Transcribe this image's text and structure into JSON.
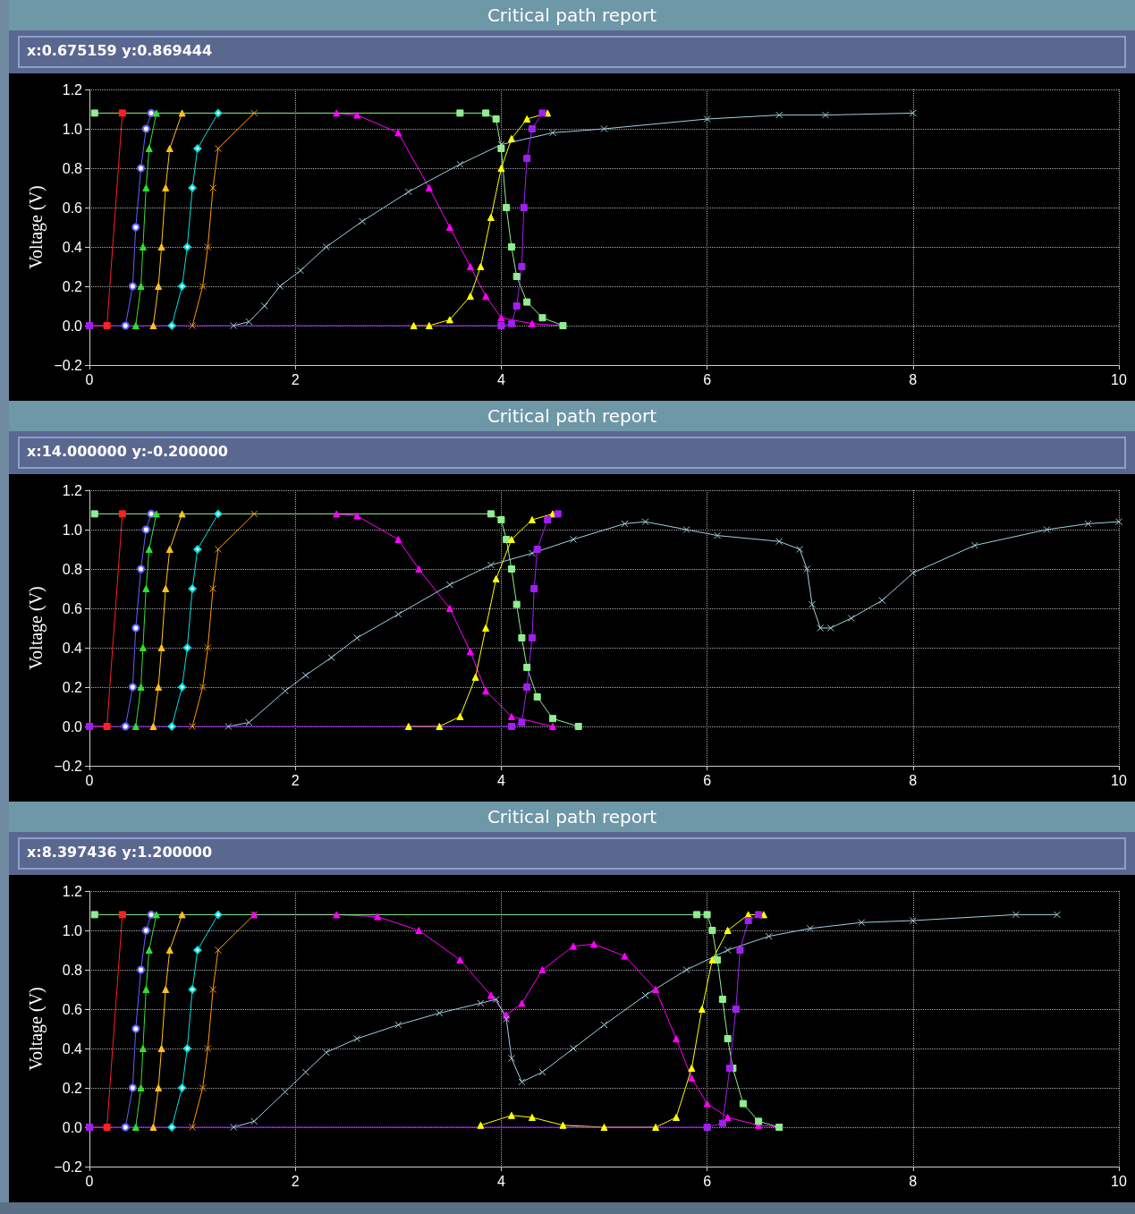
{
  "chart_data": [
    {
      "type": "line",
      "title": "Critical path report",
      "subtitle": "x:0.675159 y:0.869444",
      "ylabel": "Voltage (V)",
      "xlim": [
        0,
        10
      ],
      "xticks": [
        0,
        2,
        4,
        6,
        8,
        10
      ],
      "ylim": [
        -0.2,
        1.2
      ],
      "yticks": [
        {
          "value": -0.2,
          "label": "−0.2"
        },
        {
          "value": 0,
          "label": "0.0"
        },
        0.2,
        0.4,
        0.6,
        0.8,
        {
          "value": 1,
          "label": "1.0"
        },
        1.2
      ],
      "grid": true,
      "line_style": "solid",
      "series": [
        {
          "color": "#ff2020",
          "marker": "square",
          "x": [
            0,
            0.17,
            0.32
          ],
          "values": [
            0,
            0,
            1.08
          ]
        },
        {
          "color": "#6060ff",
          "marker": "circle",
          "x": [
            0.35,
            0.42,
            0.45,
            0.5,
            0.55,
            0.6
          ],
          "values": [
            0,
            0.2,
            0.5,
            0.8,
            1.0,
            1.08
          ]
        },
        {
          "color": "#30e030",
          "marker": "triangle",
          "x": [
            0.45,
            0.5,
            0.52,
            0.55,
            0.58,
            0.65
          ],
          "values": [
            0,
            0.2,
            0.4,
            0.7,
            0.9,
            1.08
          ]
        },
        {
          "color": "#ffc020",
          "marker": "triangle",
          "x": [
            0.62,
            0.67,
            0.7,
            0.74,
            0.78,
            0.9
          ],
          "values": [
            0,
            0.2,
            0.4,
            0.7,
            0.9,
            1.08
          ]
        },
        {
          "color": "#00e0e0",
          "marker": "diamond",
          "x": [
            0.8,
            0.9,
            0.95,
            1.0,
            1.05,
            1.25
          ],
          "values": [
            0,
            0.2,
            0.4,
            0.7,
            0.9,
            1.08
          ]
        },
        {
          "color": "#ff9900",
          "marker": "cross",
          "x": [
            1.0,
            1.1,
            1.15,
            1.2,
            1.25,
            1.6
          ],
          "values": [
            0,
            0.2,
            0.4,
            0.7,
            0.9,
            1.08
          ]
        },
        {
          "color": "#ff00ff",
          "marker": "triangle",
          "x": [
            2.4,
            2.6,
            3.0,
            3.3,
            3.5,
            3.7,
            3.85,
            4.0,
            4.3,
            4.6
          ],
          "values": [
            1.08,
            1.07,
            0.98,
            0.7,
            0.5,
            0.3,
            0.15,
            0.04,
            0.01,
            0
          ]
        },
        {
          "color": "#a0d0e0",
          "marker": "cross",
          "x": [
            1.4,
            1.55,
            1.7,
            1.85,
            2.05,
            2.3,
            2.65,
            3.1,
            3.6,
            4.0,
            4.5,
            5.0,
            6.0,
            6.7,
            7.15,
            8.0
          ],
          "values": [
            0,
            0.02,
            0.1,
            0.2,
            0.28,
            0.4,
            0.53,
            0.68,
            0.82,
            0.92,
            0.98,
            1.0,
            1.05,
            1.07,
            1.07,
            1.08
          ]
        },
        {
          "color": "#90ee90",
          "marker": "square",
          "x": [
            0.05,
            3.6,
            3.85,
            3.95,
            4.0,
            4.05,
            4.1,
            4.15,
            4.25,
            4.4,
            4.6
          ],
          "values": [
            1.08,
            1.08,
            1.08,
            1.05,
            0.9,
            0.6,
            0.4,
            0.25,
            0.12,
            0.04,
            0
          ]
        },
        {
          "color": "#ffff00",
          "marker": "triangle",
          "x": [
            3.15,
            3.3,
            3.5,
            3.7,
            3.8,
            3.9,
            4.0,
            4.1,
            4.25,
            4.45
          ],
          "values": [
            0,
            0,
            0.03,
            0.15,
            0.3,
            0.55,
            0.8,
            0.95,
            1.05,
            1.08
          ]
        },
        {
          "color": "#a020f0",
          "marker": "square",
          "x": [
            0,
            4.0,
            4.1,
            4.15,
            4.2,
            4.22,
            4.25,
            4.3,
            4.4
          ],
          "values": [
            0,
            0,
            0.01,
            0.1,
            0.3,
            0.6,
            0.85,
            1.0,
            1.08
          ]
        }
      ]
    },
    {
      "type": "line",
      "title": "Critical path report",
      "subtitle": "x:14.000000 y:-0.200000",
      "ylabel": "Voltage (V)",
      "xlim": [
        0,
        10
      ],
      "xticks": [
        0,
        2,
        4,
        6,
        8,
        10
      ],
      "ylim": [
        -0.2,
        1.2
      ],
      "yticks": [
        {
          "value": -0.2,
          "label": "−0.2"
        },
        {
          "value": 0,
          "label": "0.0"
        },
        0.2,
        0.4,
        0.6,
        0.8,
        {
          "value": 1,
          "label": "1.0"
        },
        1.2
      ],
      "grid": true,
      "line_style": "solid",
      "series": [
        {
          "color": "#ff2020",
          "marker": "square",
          "x": [
            0,
            0.17,
            0.32
          ],
          "values": [
            0,
            0,
            1.08
          ]
        },
        {
          "color": "#6060ff",
          "marker": "circle",
          "x": [
            0.35,
            0.42,
            0.45,
            0.5,
            0.55,
            0.6
          ],
          "values": [
            0,
            0.2,
            0.5,
            0.8,
            1.0,
            1.08
          ]
        },
        {
          "color": "#30e030",
          "marker": "triangle",
          "x": [
            0.45,
            0.5,
            0.52,
            0.55,
            0.58,
            0.65
          ],
          "values": [
            0,
            0.2,
            0.4,
            0.7,
            0.9,
            1.08
          ]
        },
        {
          "color": "#ffc020",
          "marker": "triangle",
          "x": [
            0.62,
            0.67,
            0.7,
            0.74,
            0.78,
            0.9
          ],
          "values": [
            0,
            0.2,
            0.4,
            0.7,
            0.9,
            1.08
          ]
        },
        {
          "color": "#00e0e0",
          "marker": "diamond",
          "x": [
            0.8,
            0.9,
            0.95,
            1.0,
            1.05,
            1.25
          ],
          "values": [
            0,
            0.2,
            0.4,
            0.7,
            0.9,
            1.08
          ]
        },
        {
          "color": "#ff9900",
          "marker": "cross",
          "x": [
            1.0,
            1.1,
            1.15,
            1.2,
            1.25,
            1.6
          ],
          "values": [
            0,
            0.2,
            0.4,
            0.7,
            0.9,
            1.08
          ]
        },
        {
          "color": "#ff00ff",
          "marker": "triangle",
          "x": [
            2.4,
            2.6,
            3.0,
            3.2,
            3.5,
            3.7,
            3.85,
            4.1,
            4.5
          ],
          "values": [
            1.08,
            1.07,
            0.95,
            0.8,
            0.6,
            0.38,
            0.18,
            0.05,
            0
          ]
        },
        {
          "color": "#a0d0e0",
          "marker": "cross",
          "x": [
            1.35,
            1.55,
            1.9,
            2.1,
            2.35,
            2.6,
            3.0,
            3.5,
            3.9,
            4.3,
            4.7,
            5.2,
            5.4,
            5.8,
            6.1,
            6.7,
            6.9,
            6.97,
            7.02,
            7.1,
            7.2,
            7.4,
            7.7,
            8.0,
            8.6,
            9.3,
            9.7,
            10.0
          ],
          "values": [
            0,
            0.02,
            0.18,
            0.26,
            0.35,
            0.45,
            0.57,
            0.72,
            0.82,
            0.88,
            0.95,
            1.03,
            1.04,
            1.0,
            0.97,
            0.94,
            0.9,
            0.8,
            0.62,
            0.5,
            0.5,
            0.55,
            0.64,
            0.78,
            0.92,
            1.0,
            1.03,
            1.04
          ]
        },
        {
          "color": "#90ee90",
          "marker": "square",
          "x": [
            0.05,
            3.9,
            4.0,
            4.05,
            4.1,
            4.15,
            4.2,
            4.25,
            4.35,
            4.5,
            4.75
          ],
          "values": [
            1.08,
            1.08,
            1.05,
            0.95,
            0.8,
            0.62,
            0.45,
            0.3,
            0.15,
            0.04,
            0
          ]
        },
        {
          "color": "#ffff00",
          "marker": "triangle",
          "x": [
            3.1,
            3.4,
            3.6,
            3.75,
            3.85,
            3.95,
            4.1,
            4.3,
            4.5
          ],
          "values": [
            0,
            0,
            0.05,
            0.25,
            0.5,
            0.75,
            0.95,
            1.05,
            1.08
          ]
        },
        {
          "color": "#a020f0",
          "marker": "square",
          "x": [
            0,
            4.1,
            4.2,
            4.25,
            4.3,
            4.32,
            4.35,
            4.45,
            4.55
          ],
          "values": [
            0,
            0,
            0.02,
            0.2,
            0.45,
            0.7,
            0.9,
            1.05,
            1.08
          ]
        }
      ]
    },
    {
      "type": "line",
      "title": "Critical path report",
      "subtitle": "x:8.397436 y:1.200000",
      "ylabel": "Voltage (V)",
      "xlim": [
        0,
        10
      ],
      "xticks": [
        0,
        2,
        4,
        6,
        8,
        10
      ],
      "ylim": [
        -0.2,
        1.2
      ],
      "yticks": [
        {
          "value": -0.2,
          "label": "−0.2"
        },
        {
          "value": 0,
          "label": "0.0"
        },
        0.2,
        0.4,
        0.6,
        0.8,
        {
          "value": 1,
          "label": "1.0"
        },
        1.2
      ],
      "grid": true,
      "line_style": "solid",
      "series": [
        {
          "color": "#ff2020",
          "marker": "square",
          "x": [
            0,
            0.17,
            0.32
          ],
          "values": [
            0,
            0,
            1.08
          ]
        },
        {
          "color": "#6060ff",
          "marker": "circle",
          "x": [
            0.35,
            0.42,
            0.45,
            0.5,
            0.55,
            0.6
          ],
          "values": [
            0,
            0.2,
            0.5,
            0.8,
            1.0,
            1.08
          ]
        },
        {
          "color": "#30e030",
          "marker": "triangle",
          "x": [
            0.45,
            0.5,
            0.52,
            0.55,
            0.58,
            0.65
          ],
          "values": [
            0,
            0.2,
            0.4,
            0.7,
            0.9,
            1.08
          ]
        },
        {
          "color": "#ffc020",
          "marker": "triangle",
          "x": [
            0.62,
            0.67,
            0.7,
            0.74,
            0.78,
            0.9
          ],
          "values": [
            0,
            0.2,
            0.4,
            0.7,
            0.9,
            1.08
          ]
        },
        {
          "color": "#00e0e0",
          "marker": "diamond",
          "x": [
            0.8,
            0.9,
            0.95,
            1.0,
            1.05,
            1.25
          ],
          "values": [
            0,
            0.2,
            0.4,
            0.7,
            0.9,
            1.08
          ]
        },
        {
          "color": "#ff9900",
          "marker": "cross",
          "x": [
            1.0,
            1.1,
            1.15,
            1.2,
            1.25,
            1.6
          ],
          "values": [
            0,
            0.2,
            0.4,
            0.7,
            0.9,
            1.08
          ]
        },
        {
          "color": "#ff00ff",
          "marker": "triangle",
          "x": [
            1.6,
            2.4,
            2.8,
            3.2,
            3.6,
            3.9,
            4.05,
            4.2,
            4.4,
            4.7,
            4.9,
            5.2,
            5.5,
            5.7,
            5.85,
            6.0,
            6.2,
            6.5,
            6.7
          ],
          "values": [
            1.08,
            1.08,
            1.07,
            1.0,
            0.85,
            0.67,
            0.57,
            0.63,
            0.8,
            0.92,
            0.93,
            0.87,
            0.7,
            0.45,
            0.25,
            0.12,
            0.05,
            0.01,
            0
          ]
        },
        {
          "color": "#a0d0e0",
          "marker": "cross",
          "x": [
            1.4,
            1.6,
            1.9,
            2.1,
            2.3,
            2.6,
            3.0,
            3.4,
            3.8,
            3.95,
            4.05,
            4.1,
            4.2,
            4.4,
            4.7,
            5.0,
            5.4,
            5.8,
            6.2,
            6.6,
            7.0,
            7.5,
            8.0,
            9.0,
            9.4
          ],
          "values": [
            0,
            0.03,
            0.18,
            0.28,
            0.38,
            0.45,
            0.52,
            0.58,
            0.63,
            0.65,
            0.55,
            0.35,
            0.23,
            0.28,
            0.4,
            0.52,
            0.67,
            0.8,
            0.9,
            0.97,
            1.01,
            1.04,
            1.05,
            1.08,
            1.08
          ]
        },
        {
          "color": "#90ee90",
          "marker": "square",
          "x": [
            0.05,
            5.9,
            6.0,
            6.05,
            6.1,
            6.15,
            6.2,
            6.25,
            6.35,
            6.5,
            6.7
          ],
          "values": [
            1.08,
            1.08,
            1.08,
            1.0,
            0.85,
            0.65,
            0.45,
            0.3,
            0.12,
            0.03,
            0
          ]
        },
        {
          "color": "#ffff00",
          "marker": "triangle",
          "x": [
            3.8,
            4.1,
            4.3,
            4.6,
            5.0,
            5.5,
            5.7,
            5.85,
            5.95,
            6.05,
            6.2,
            6.4,
            6.55
          ],
          "values": [
            0.01,
            0.06,
            0.05,
            0.01,
            0,
            0,
            0.05,
            0.3,
            0.6,
            0.85,
            1.0,
            1.08,
            1.08
          ]
        },
        {
          "color": "#a020f0",
          "marker": "square",
          "x": [
            0,
            6.0,
            6.15,
            6.22,
            6.28,
            6.32,
            6.4,
            6.5
          ],
          "values": [
            0,
            0,
            0.02,
            0.3,
            0.6,
            0.9,
            1.05,
            1.08
          ]
        }
      ]
    }
  ]
}
